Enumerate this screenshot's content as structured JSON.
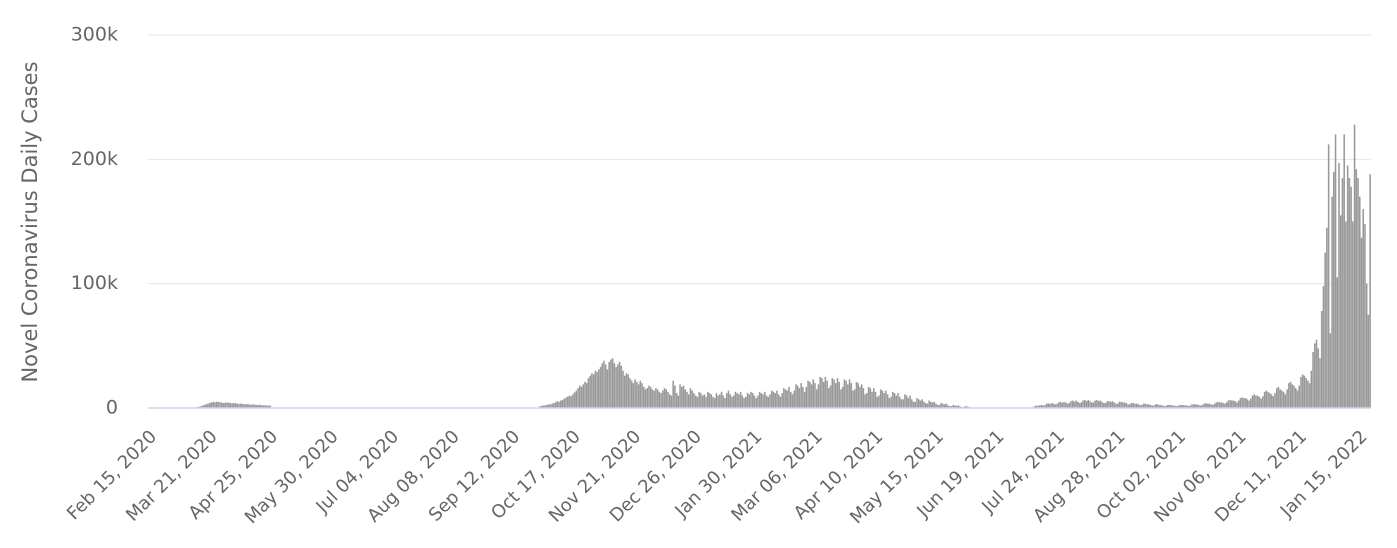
{
  "chart_data": {
    "type": "bar",
    "y_label": "Novel Coronavirus Daily Cases",
    "color": "#999999",
    "grid": true,
    "xlim": [
      0,
      706
    ],
    "xticks": [
      {
        "value": 0,
        "label": "Feb 15, 2020"
      },
      {
        "value": 35,
        "label": "Mar 21, 2020"
      },
      {
        "value": 70,
        "label": "Apr 25, 2020"
      },
      {
        "value": 105,
        "label": "May 30, 2020"
      },
      {
        "value": 140,
        "label": "Jul 04, 2020"
      },
      {
        "value": 175,
        "label": "Aug 08, 2020"
      },
      {
        "value": 210,
        "label": "Sep 12, 2020"
      },
      {
        "value": 245,
        "label": "Oct 17, 2020"
      },
      {
        "value": 280,
        "label": "Nov 21, 2020"
      },
      {
        "value": 315,
        "label": "Dec 26, 2020"
      },
      {
        "value": 350,
        "label": "Jan 30, 2021"
      },
      {
        "value": 385,
        "label": "Mar 06, 2021"
      },
      {
        "value": 420,
        "label": "Apr 10, 2021"
      },
      {
        "value": 455,
        "label": "May 15, 2021"
      },
      {
        "value": 490,
        "label": "Jun 19, 2021"
      },
      {
        "value": 525,
        "label": "Jul 24, 2021"
      },
      {
        "value": 560,
        "label": "Aug 28, 2021"
      },
      {
        "value": 595,
        "label": "Oct 02, 2021"
      },
      {
        "value": 630,
        "label": "Nov 06, 2021"
      },
      {
        "value": 665,
        "label": "Dec 11, 2021"
      },
      {
        "value": 700,
        "label": "Jan 15, 2022"
      }
    ],
    "ylim": [
      0,
      300000
    ],
    "yticks": [
      0,
      {
        "value": 100000,
        "label": "100k"
      },
      {
        "value": 200000,
        "label": "200k"
      },
      {
        "value": 300000,
        "label": "300k"
      }
    ],
    "x": [
      0,
      1,
      2,
      3,
      4,
      5,
      6,
      7,
      8,
      9,
      10,
      11,
      12,
      13,
      14,
      15,
      16,
      17,
      18,
      19,
      20,
      21,
      22,
      23,
      24,
      25,
      26,
      27,
      28,
      29,
      30,
      31,
      32,
      33,
      34,
      35,
      36,
      37,
      38,
      39,
      40,
      41,
      42,
      43,
      44,
      45,
      46,
      47,
      48,
      49,
      50,
      51,
      52,
      53,
      54,
      55,
      56,
      57,
      58,
      59,
      60,
      61,
      62,
      63,
      64,
      65,
      66,
      67,
      68,
      69,
      70,
      71,
      72,
      73,
      74,
      75,
      76,
      77,
      78,
      79,
      80,
      81,
      82,
      83,
      84,
      85,
      86,
      87,
      88,
      89,
      90,
      91,
      92,
      93,
      94,
      95,
      96,
      97,
      98,
      99,
      100,
      101,
      102,
      103,
      104,
      105,
      106,
      107,
      108,
      109,
      110,
      111,
      112,
      113,
      114,
      115,
      116,
      117,
      118,
      119,
      120,
      121,
      122,
      123,
      124,
      125,
      126,
      127,
      128,
      129,
      130,
      131,
      132,
      133,
      134,
      135,
      136,
      137,
      138,
      139,
      140,
      141,
      142,
      143,
      144,
      145,
      146,
      147,
      148,
      149,
      150,
      151,
      152,
      153,
      154,
      155,
      156,
      157,
      158,
      159,
      160,
      161,
      162,
      163,
      164,
      165,
      166,
      167,
      168,
      169,
      170,
      171,
      172,
      173,
      174,
      175,
      176,
      177,
      178,
      179,
      180,
      181,
      182,
      183,
      184,
      185,
      186,
      187,
      188,
      189,
      190,
      191,
      192,
      193,
      194,
      195,
      196,
      197,
      198,
      199,
      200,
      201,
      202,
      203,
      204,
      205,
      206,
      207,
      208,
      209,
      210,
      211,
      212,
      213,
      214,
      215,
      216,
      217,
      218,
      219,
      220,
      221,
      222,
      223,
      224,
      225,
      226,
      227,
      228,
      229,
      230,
      231,
      232,
      233,
      234,
      235,
      236,
      237,
      238,
      239,
      240,
      241,
      242,
      243,
      244,
      245,
      246,
      247,
      248,
      249,
      250,
      251,
      252,
      253,
      254,
      255,
      256,
      257,
      258,
      259,
      260,
      261,
      262,
      263,
      264,
      265,
      266,
      267,
      268,
      269,
      270,
      271,
      272,
      273,
      274,
      275,
      276,
      277,
      278,
      279,
      280,
      281,
      282,
      283,
      284,
      285,
      286,
      287,
      288,
      289,
      290,
      291,
      292,
      293,
      294,
      295,
      296,
      297,
      298,
      299,
      300,
      301,
      302,
      303,
      304,
      305,
      306,
      307,
      308,
      309,
      310,
      311,
      312,
      313,
      314,
      315,
      316,
      317,
      318,
      319,
      320,
      321,
      322,
      323,
      324,
      325,
      326,
      327,
      328,
      329,
      330,
      331,
      332,
      333,
      334,
      335,
      336,
      337,
      338,
      339,
      340,
      341,
      342,
      343,
      344,
      345,
      346,
      347,
      348,
      349,
      350,
      351,
      352,
      353,
      354,
      355,
      356,
      357,
      358,
      359,
      360,
      361,
      362,
      363,
      364,
      365,
      366,
      367,
      368,
      369,
      370,
      371,
      372,
      373,
      374,
      375,
      376,
      377,
      378,
      379,
      380,
      381,
      382,
      383,
      384,
      385,
      386,
      387,
      388,
      389,
      390,
      391,
      392,
      393,
      394,
      395,
      396,
      397,
      398,
      399,
      400,
      401,
      402,
      403,
      404,
      405,
      406,
      407,
      408,
      409,
      410,
      411,
      412,
      413,
      414,
      415,
      416,
      417,
      418,
      419,
      420,
      421,
      422,
      423,
      424,
      425,
      426,
      427,
      428,
      429,
      430,
      431,
      432,
      433,
      434,
      435,
      436,
      437,
      438,
      439,
      440,
      441,
      442,
      443,
      444,
      445,
      446,
      447,
      448,
      449,
      450,
      451,
      452,
      453,
      454,
      455,
      456,
      457,
      458,
      459,
      460,
      461,
      462,
      463,
      464,
      465,
      466,
      467,
      468,
      469,
      470,
      471,
      472,
      473,
      474,
      475,
      476,
      477,
      478,
      479,
      480,
      481,
      482,
      483,
      484,
      485,
      486,
      487,
      488,
      489,
      490,
      491,
      492,
      493,
      494,
      495,
      496,
      497,
      498,
      499,
      500,
      501,
      502,
      503,
      504,
      505,
      506,
      507,
      508,
      509,
      510,
      511,
      512,
      513,
      514,
      515,
      516,
      517,
      518,
      519,
      520,
      521,
      522,
      523,
      524,
      525,
      526,
      527,
      528,
      529,
      530,
      531,
      532,
      533,
      534,
      535,
      536,
      537,
      538,
      539,
      540,
      541,
      542,
      543,
      544,
      545,
      546,
      547,
      548,
      549,
      550,
      551,
      552,
      553,
      554,
      555,
      556,
      557,
      558,
      559,
      560,
      561,
      562,
      563,
      564,
      565,
      566,
      567,
      568,
      569,
      570,
      571,
      572,
      573,
      574,
      575,
      576,
      577,
      578,
      579,
      580,
      581,
      582,
      583,
      584,
      585,
      586,
      587,
      588,
      589,
      590,
      591,
      592,
      593,
      594,
      595,
      596,
      597,
      598,
      599,
      600,
      601,
      602,
      603,
      604,
      605,
      606,
      607,
      608,
      609,
      610,
      611,
      612,
      613,
      614,
      615,
      616,
      617,
      618,
      619,
      620,
      621,
      622,
      623,
      624,
      625,
      626,
      627,
      628,
      629,
      630,
      631,
      632,
      633,
      634,
      635,
      636,
      637,
      638,
      639,
      640,
      641,
      642,
      643,
      644,
      645,
      646,
      647,
      648,
      649,
      650,
      651,
      652,
      653,
      654,
      655,
      656,
      657,
      658,
      659,
      660,
      661,
      662,
      663,
      664,
      665,
      666,
      667,
      668,
      669,
      670,
      671,
      672,
      673,
      674,
      675,
      676,
      677,
      678,
      679,
      680,
      681,
      682,
      683,
      684,
      685,
      686,
      687,
      688,
      689,
      690,
      691,
      692,
      693,
      694,
      695,
      696,
      697,
      698,
      699,
      700,
      701,
      702,
      703,
      704,
      705
    ],
    "values": [
      0,
      0,
      0,
      0,
      0,
      0,
      0,
      0,
      0,
      0,
      0,
      0,
      0,
      0,
      0,
      0,
      0,
      0,
      0,
      0,
      0,
      0,
      0,
      0,
      0,
      0,
      500,
      800,
      1000,
      1500,
      2000,
      2500,
      3000,
      3500,
      4000,
      4500,
      5000,
      4500,
      5000,
      4800,
      4600,
      4500,
      4000,
      4200,
      4500,
      4300,
      4000,
      3800,
      4000,
      3900,
      3500,
      3200,
      3500,
      3300,
      3000,
      3200,
      3100,
      2800,
      2600,
      2900,
      2700,
      2500,
      2400,
      2600,
      2300,
      2100,
      2200,
      2000,
      1900,
      2100,
      0,
      0,
      0,
      0,
      0,
      0,
      0,
      0,
      0,
      0,
      0,
      0,
      0,
      0,
      0,
      0,
      0,
      0,
      0,
      0,
      0,
      0,
      0,
      0,
      0,
      0,
      0,
      0,
      0,
      0,
      0,
      0,
      0,
      0,
      0,
      0,
      0,
      0,
      0,
      0,
      0,
      0,
      0,
      0,
      0,
      0,
      0,
      0,
      0,
      0,
      0,
      0,
      0,
      0,
      0,
      0,
      0,
      0,
      0,
      0,
      0,
      0,
      0,
      0,
      0,
      0,
      0,
      0,
      0,
      0,
      0,
      0,
      0,
      0,
      0,
      0,
      0,
      0,
      0,
      0,
      0,
      0,
      0,
      0,
      0,
      0,
      0,
      0,
      0,
      0,
      0,
      0,
      0,
      0,
      0,
      0,
      0,
      0,
      0,
      0,
      0,
      0,
      0,
      0,
      0,
      0,
      0,
      0,
      0,
      0,
      0,
      0,
      0,
      0,
      0,
      0,
      0,
      0,
      0,
      0,
      0,
      0,
      0,
      0,
      0,
      0,
      0,
      0,
      0,
      0,
      0,
      0,
      0,
      0,
      0,
      0,
      0,
      0,
      0,
      0,
      0,
      0,
      0,
      0,
      0,
      0,
      0,
      0,
      0,
      0,
      0,
      0,
      0,
      0,
      0,
      1500,
      1800,
      2000,
      2200,
      2500,
      3000,
      2800,
      3500,
      4000,
      4500,
      5500,
      5000,
      6000,
      6500,
      7500,
      8500,
      9000,
      10000,
      9500,
      11000,
      12500,
      14000,
      16000,
      18000,
      17000,
      19000,
      21000,
      20000,
      24000,
      26000,
      28000,
      27000,
      30000,
      29000,
      31000,
      33000,
      36000,
      38000,
      35000,
      31000,
      37000,
      39000,
      40000,
      36000,
      33000,
      35000,
      37000,
      34000,
      30000,
      26000,
      28000,
      27000,
      24000,
      22000,
      20000,
      23000,
      21000,
      19000,
      22000,
      20000,
      17000,
      15000,
      16000,
      18000,
      17000,
      15000,
      14000,
      16000,
      15000,
      13000,
      12000,
      14000,
      16000,
      15000,
      13000,
      11000,
      10000,
      22000,
      18000,
      12000,
      10000,
      19000,
      17000,
      18000,
      15000,
      13000,
      11000,
      16000,
      14000,
      12000,
      10000,
      9000,
      13000,
      12000,
      10000,
      11000,
      9000,
      13000,
      12000,
      11000,
      9000,
      8000,
      12000,
      10000,
      11000,
      13000,
      10000,
      8000,
      12000,
      14000,
      11000,
      9000,
      10000,
      13000,
      12000,
      11000,
      13000,
      10000,
      8000,
      9000,
      12000,
      11000,
      13000,
      12000,
      10000,
      8000,
      10000,
      13000,
      12000,
      11000,
      13000,
      10000,
      9000,
      11000,
      14000,
      13000,
      12000,
      14000,
      11000,
      9000,
      12000,
      16000,
      15000,
      14000,
      17000,
      13000,
      11000,
      14000,
      19000,
      18000,
      16000,
      20000,
      17000,
      13000,
      17000,
      22000,
      21000,
      19000,
      23000,
      20000,
      15000,
      19000,
      25000,
      24000,
      21000,
      25000,
      22000,
      16000,
      18000,
      24000,
      23000,
      20000,
      24000,
      21000,
      15000,
      17000,
      23000,
      22000,
      19000,
      23000,
      20000,
      14000,
      15000,
      21000,
      20000,
      17000,
      19000,
      16000,
      11000,
      12000,
      17000,
      16000,
      13000,
      16000,
      13000,
      9000,
      10000,
      15000,
      14000,
      12000,
      14000,
      11000,
      8000,
      9000,
      13000,
      12000,
      10000,
      12000,
      9000,
      7000,
      7000,
      11000,
      10000,
      8000,
      10000,
      7000,
      5000,
      5000,
      8000,
      7000,
      6000,
      7000,
      5000,
      4000,
      3500,
      6000,
      5000,
      4500,
      5000,
      3500,
      2500,
      2500,
      4000,
      3500,
      3000,
      3500,
      2000,
      1500,
      1500,
      2500,
      2000,
      1800,
      2000,
      1200,
      800,
      800,
      1500,
      1200,
      900,
      500,
      0,
      0,
      0,
      0,
      0,
      0,
      0,
      0,
      0,
      0,
      0,
      0,
      0,
      0,
      0,
      0,
      0,
      0,
      0,
      0,
      0,
      0,
      0,
      0,
      0,
      0,
      0,
      0,
      0,
      0,
      0,
      0,
      0,
      0,
      0,
      500,
      1500,
      2000,
      1800,
      2200,
      2500,
      2000,
      2500,
      3500,
      3800,
      3200,
      4000,
      3500,
      2800,
      3500,
      4500,
      5000,
      4200,
      5000,
      4500,
      3500,
      4000,
      5500,
      6000,
      5000,
      6000,
      5000,
      4000,
      4500,
      6000,
      6500,
      5500,
      6500,
      5500,
      4500,
      4500,
      6000,
      6500,
      5500,
      6000,
      5000,
      4000,
      4000,
      5500,
      5500,
      5000,
      5500,
      4500,
      3500,
      3500,
      5000,
      5000,
      4500,
      4500,
      4000,
      3000,
      3000,
      4000,
      4000,
      3500,
      3500,
      3000,
      2500,
      2500,
      3500,
      3500,
      3000,
      3000,
      2500,
      2000,
      2000,
      3000,
      3000,
      2500,
      2500,
      2000,
      1500,
      1800,
      2500,
      2500,
      2200,
      2200,
      1800,
      1500,
      1800,
      2500,
      2500,
      2200,
      2300,
      2000,
      1600,
      2000,
      3000,
      3000,
      2800,
      2800,
      2400,
      2000,
      2500,
      3500,
      3800,
      3500,
      3500,
      3000,
      2500,
      3500,
      4500,
      5000,
      4500,
      4500,
      4000,
      3500,
      4500,
      6000,
      6500,
      6000,
      6000,
      5500,
      4500,
      6000,
      8000,
      8500,
      8000,
      8000,
      7000,
      6000,
      7500,
      10000,
      11000,
      10000,
      10000,
      9000,
      7500,
      9500,
      13000,
      14000,
      13000,
      12000,
      11000,
      9500,
      12000,
      16000,
      17000,
      15000,
      14000,
      13000,
      11000,
      15000,
      20000,
      21000,
      19000,
      18000,
      16000,
      14000,
      18000,
      25000,
      27000,
      26000,
      24000,
      22000,
      20000,
      30000,
      45000,
      52000,
      55000,
      48000,
      40000,
      78000,
      98000,
      125000,
      145000,
      212000,
      60000,
      170000,
      190000,
      220000,
      105000,
      197000,
      155000,
      185000,
      220000,
      150000,
      195000,
      185000,
      178000,
      150000,
      228000,
      192000,
      185000,
      170000,
      137000,
      160000,
      148000,
      100000,
      75000,
      188000
    ]
  }
}
